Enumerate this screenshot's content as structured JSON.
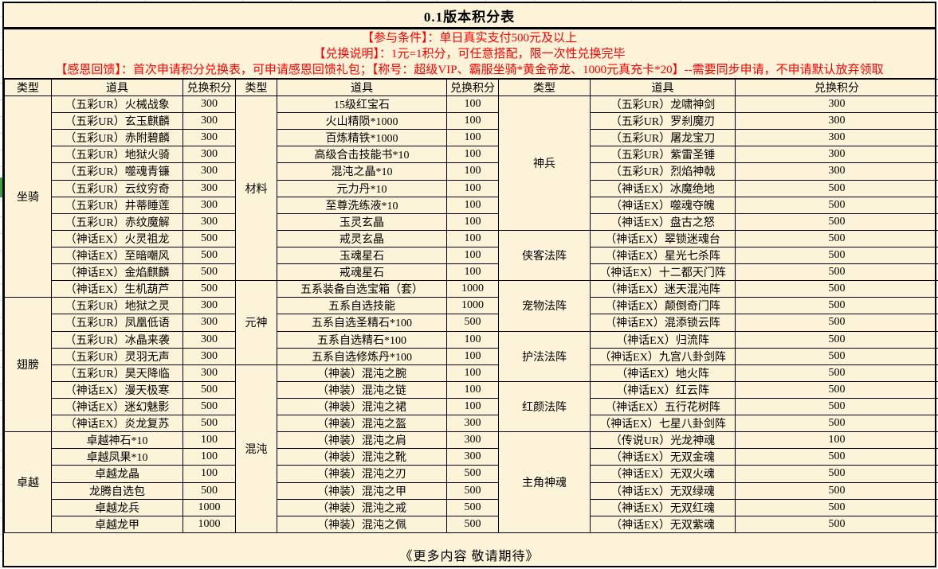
{
  "title": "0.1版本积分表",
  "notices": [
    "【参与条件】：单日真实支付500元及以上",
    "【兑换说明】：1元=1积分，可任意搭配，限一次性兑换完毕",
    "【感恩回馈】：首次申请积分兑换表，可申请感恩回馈礼包；【称号：超级VIP、霸服坐骑*黄金帝龙、1000元真充卡*20】--需要同步申请，不申请默认放弃领取"
  ],
  "footer": "《更多内容 敬请期待》",
  "colors": {
    "background": "#fcf3d9",
    "notice_text": "#ff0000",
    "border": "#000000",
    "row_marker_green": "#38a23e"
  },
  "table": {
    "column_headers": [
      "类型",
      "道具",
      "兑换积分"
    ],
    "groups": [
      [
        {
          "type": "坐骑",
          "items": [
            {
              "name": "（五彩UR）火械战象",
              "points": 300
            },
            {
              "name": "（五彩UR）玄玉麒麟",
              "points": 300
            },
            {
              "name": "（五彩UR）赤附碧麟",
              "points": 300
            },
            {
              "name": "（五彩UR）地狱火骑",
              "points": 300
            },
            {
              "name": "（五彩UR）噬魂青镰",
              "points": 300
            },
            {
              "name": "（五彩UR）云纹穷奇",
              "points": 300
            },
            {
              "name": "（五彩UR）井蒂睡莲",
              "points": 300
            },
            {
              "name": "（五彩UR）赤纹魔解",
              "points": 300
            },
            {
              "name": "（神话EX）火灵祖龙",
              "points": 500
            },
            {
              "name": "（神话EX）至暗嘲风",
              "points": 500
            },
            {
              "name": "（神话EX）金焰麒麟",
              "points": 500
            },
            {
              "name": "（神话EX）生机葫芦",
              "points": 500
            }
          ]
        },
        {
          "type": "翅膀",
          "items": [
            {
              "name": "（五彩UR）地狱之灵",
              "points": 300
            },
            {
              "name": "（五彩UR）凤凰低语",
              "points": 300
            },
            {
              "name": "（五彩UR）冰晶来袭",
              "points": 300
            },
            {
              "name": "（五彩UR）灵羽无声",
              "points": 300
            },
            {
              "name": "（五彩UR）昊天降临",
              "points": 300
            },
            {
              "name": "（神话EX）漫天极寒",
              "points": 500
            },
            {
              "name": "（神话EX）迷幻魅影",
              "points": 500
            },
            {
              "name": "（神话EX）炎龙复苏",
              "points": 500
            }
          ]
        },
        {
          "type": "卓越",
          "items": [
            {
              "name": "卓越神石*10",
              "points": 100
            },
            {
              "name": "卓越凤果*10",
              "points": 100
            },
            {
              "name": "卓越龙晶",
              "points": 100
            },
            {
              "name": "龙腾自选包",
              "points": 500
            },
            {
              "name": "卓越龙兵",
              "points": 1000
            },
            {
              "name": "卓越龙甲",
              "points": 1000
            }
          ]
        }
      ],
      [
        {
          "type": "材料",
          "items": [
            {
              "name": "15级红宝石",
              "points": 100
            },
            {
              "name": "火山精陨*1000",
              "points": 100
            },
            {
              "name": "百炼精铁*1000",
              "points": 100
            },
            {
              "name": "高级合击技能书*10",
              "points": 100
            },
            {
              "name": "混沌之晶*10",
              "points": 100
            },
            {
              "name": "元力丹*10",
              "points": 100
            },
            {
              "name": "至尊洗练液*10",
              "points": 100
            },
            {
              "name": "玉灵玄晶",
              "points": 100
            },
            {
              "name": "戒灵玄晶",
              "points": 100
            },
            {
              "name": "玉魂星石",
              "points": 100
            },
            {
              "name": "戒魂星石",
              "points": 100
            }
          ]
        },
        {
          "type": "元神",
          "items": [
            {
              "name": "五系装备自选宝箱（套）",
              "points": 1000
            },
            {
              "name": "五系自选技能",
              "points": 1000
            },
            {
              "name": "五系自选圣精石*100",
              "points": 500
            },
            {
              "name": "五系自选精石*100",
              "points": 100
            },
            {
              "name": "五系自选修炼丹*100",
              "points": 100
            }
          ]
        },
        {
          "type": "混沌",
          "items": [
            {
              "name": "（神装）混沌之腕",
              "points": 100
            },
            {
              "name": "（神装）混沌之链",
              "points": 100
            },
            {
              "name": "（神装）混沌之裙",
              "points": 100
            },
            {
              "name": "（神装）混沌之盔",
              "points": 300
            },
            {
              "name": "（神装）混沌之肩",
              "points": 300
            },
            {
              "name": "（神装）混沌之靴",
              "points": 300
            },
            {
              "name": "（神装）混沌之刃",
              "points": 500
            },
            {
              "name": "（神装）混沌之甲",
              "points": 500
            },
            {
              "name": "（神装）混沌之戒",
              "points": 500
            },
            {
              "name": "（神装）混沌之佩",
              "points": 500
            }
          ]
        }
      ],
      [
        {
          "type": "神兵",
          "items": [
            {
              "name": "（五彩UR）龙啸神剑",
              "points": 300
            },
            {
              "name": "（五彩UR）罗刹魔刃",
              "points": 300
            },
            {
              "name": "（五彩UR）屠龙宝刀",
              "points": 300
            },
            {
              "name": "（五彩UR）紫雷圣锤",
              "points": 300
            },
            {
              "name": "（五彩UR）烈焰神戟",
              "points": 300
            },
            {
              "name": "（神话EX）冰魔绝地",
              "points": 500
            },
            {
              "name": "（神话EX）噬魂夺魄",
              "points": 500
            },
            {
              "name": "（神话EX）盘古之怒",
              "points": 500
            }
          ]
        },
        {
          "type": "侠客法阵",
          "items": [
            {
              "name": "（神话EX）翠锁迷魂台",
              "points": 500
            },
            {
              "name": "（神话EX）星光七杀阵",
              "points": 500
            },
            {
              "name": "（神话EX）十二都天门阵",
              "points": 500
            }
          ]
        },
        {
          "type": "宠物法阵",
          "items": [
            {
              "name": "（神话EX）迷天混沌阵",
              "points": 500
            },
            {
              "name": "（神话EX）颠倒奇门阵",
              "points": 500
            },
            {
              "name": "（神话EX）混添锁云阵",
              "points": 500
            }
          ]
        },
        {
          "type": "护法法阵",
          "items": [
            {
              "name": "（神话EX）归流阵",
              "points": 500
            },
            {
              "name": "（神话EX）九宫八卦剑阵",
              "points": 500
            },
            {
              "name": "（神话EX）地火阵",
              "points": 500
            }
          ]
        },
        {
          "type": "红颜法阵",
          "items": [
            {
              "name": "（神话EX）红云阵",
              "points": 500
            },
            {
              "name": "（神话EX）五行花树阵",
              "points": 500
            },
            {
              "name": "（神话EX）七星八卦剑阵",
              "points": 500
            }
          ]
        },
        {
          "type": "主角神魂",
          "items": [
            {
              "name": "（传说UR）光龙神魂",
              "points": 100
            },
            {
              "name": "（神话EX）无双金魂",
              "points": 500
            },
            {
              "name": "（神话EX）无双火魂",
              "points": 500
            },
            {
              "name": "（神话EX）无双绿魂",
              "points": 500
            },
            {
              "name": "（神话EX）无双红魂",
              "points": 500
            },
            {
              "name": "（神话EX）无双紫魂",
              "points": 500
            }
          ]
        }
      ]
    ]
  }
}
